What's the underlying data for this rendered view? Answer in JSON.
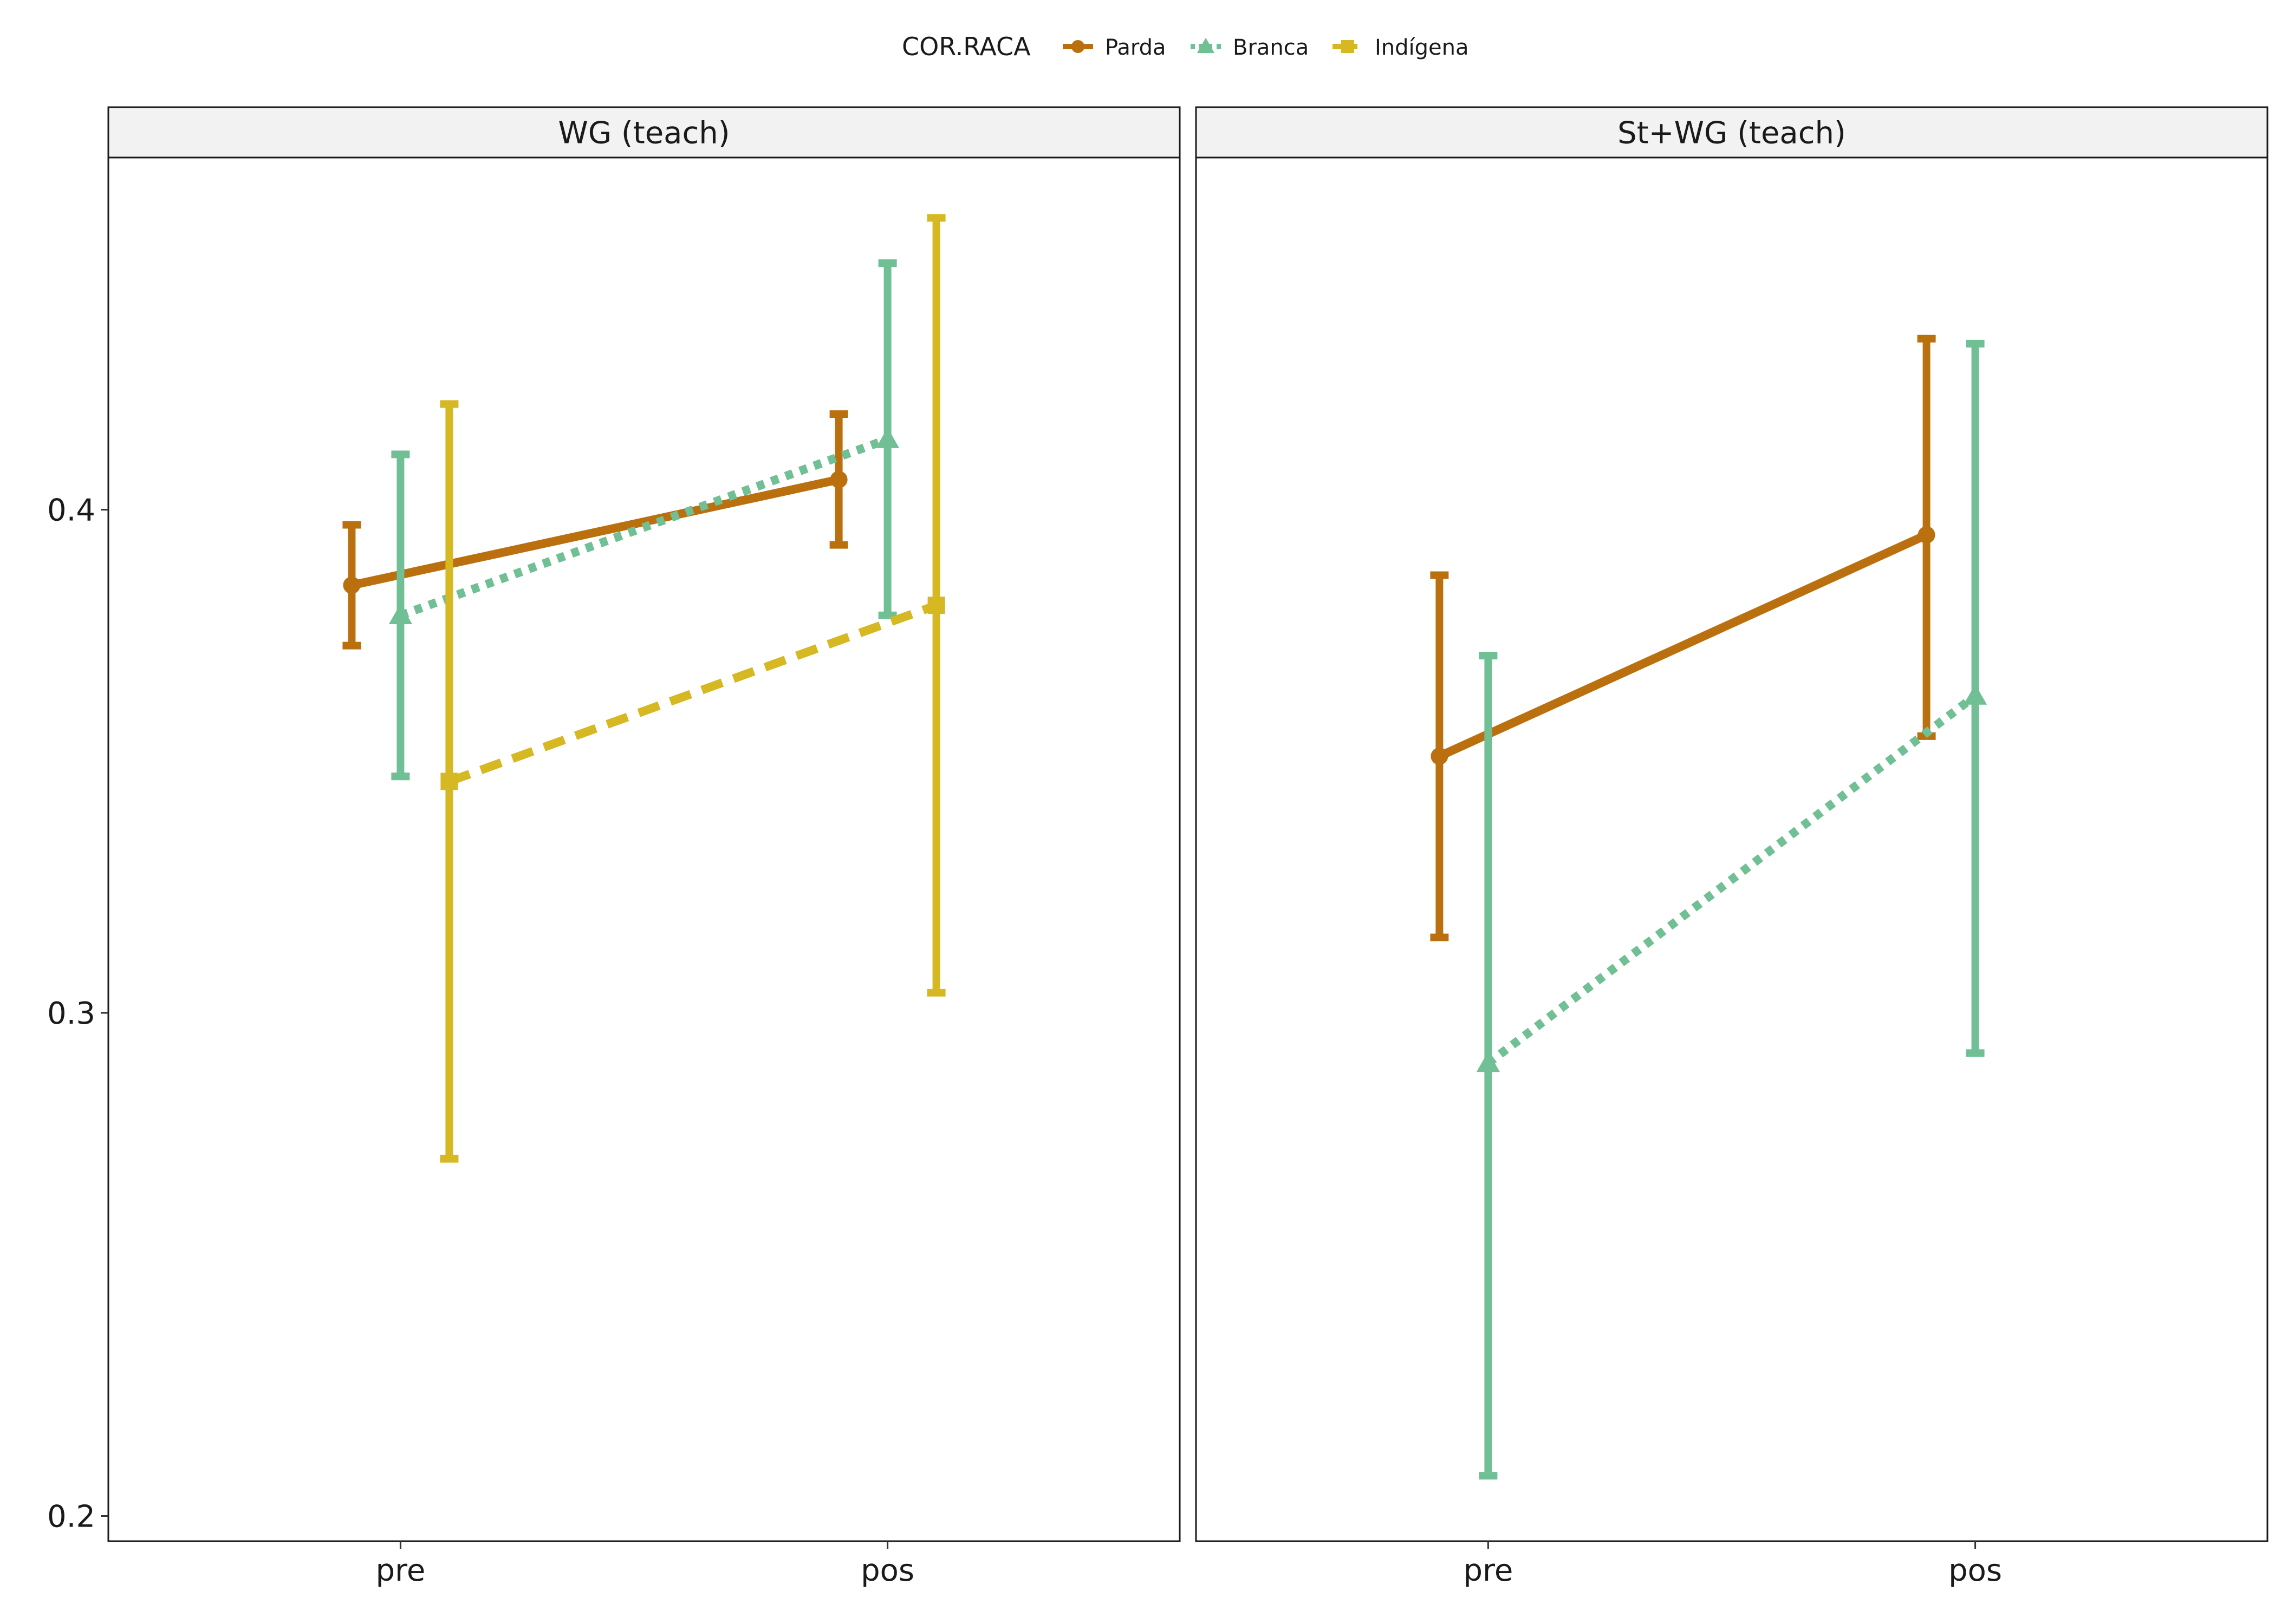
{
  "chart_data": {
    "type": "line",
    "legend": {
      "title": "COR.RACA",
      "position": "top",
      "entries": [
        {
          "name": "Parda",
          "color": "#bb700f",
          "shape": "circle",
          "linetype": "solid"
        },
        {
          "name": "Branca",
          "color": "#71bf94",
          "shape": "triangle",
          "linetype": "dotted"
        },
        {
          "name": "Indígena",
          "color": "#d5b822",
          "shape": "square",
          "linetype": "dashed"
        }
      ]
    },
    "categories": [
      "pre",
      "pos"
    ],
    "ylim": [
      0.195,
      0.47
    ],
    "yticks": [
      0.2,
      0.3,
      0.4
    ],
    "ytick_labels": [
      "0.2",
      "0.3",
      "0.4"
    ],
    "grid": false,
    "panels": [
      {
        "title": "WG (teach)",
        "series": [
          {
            "name": "Parda",
            "values": [
              0.385,
              0.406
            ],
            "lower": [
              0.373,
              0.393
            ],
            "upper": [
              0.397,
              0.419
            ]
          },
          {
            "name": "Branca",
            "values": [
              0.379,
              0.414
            ],
            "lower": [
              0.347,
              0.379
            ],
            "upper": [
              0.411,
              0.449
            ]
          },
          {
            "name": "Indígena",
            "values": [
              0.346,
              0.381
            ],
            "lower": [
              0.271,
              0.304
            ],
            "upper": [
              0.421,
              0.458
            ]
          }
        ]
      },
      {
        "title": "St+WG (teach)",
        "series": [
          {
            "name": "Parda",
            "values": [
              0.351,
              0.395
            ],
            "lower": [
              0.315,
              0.355
            ],
            "upper": [
              0.387,
              0.434
            ]
          },
          {
            "name": "Branca",
            "values": [
              0.29,
              0.363
            ],
            "lower": [
              0.208,
              0.292
            ],
            "upper": [
              0.371,
              0.433
            ]
          }
        ]
      }
    ]
  }
}
